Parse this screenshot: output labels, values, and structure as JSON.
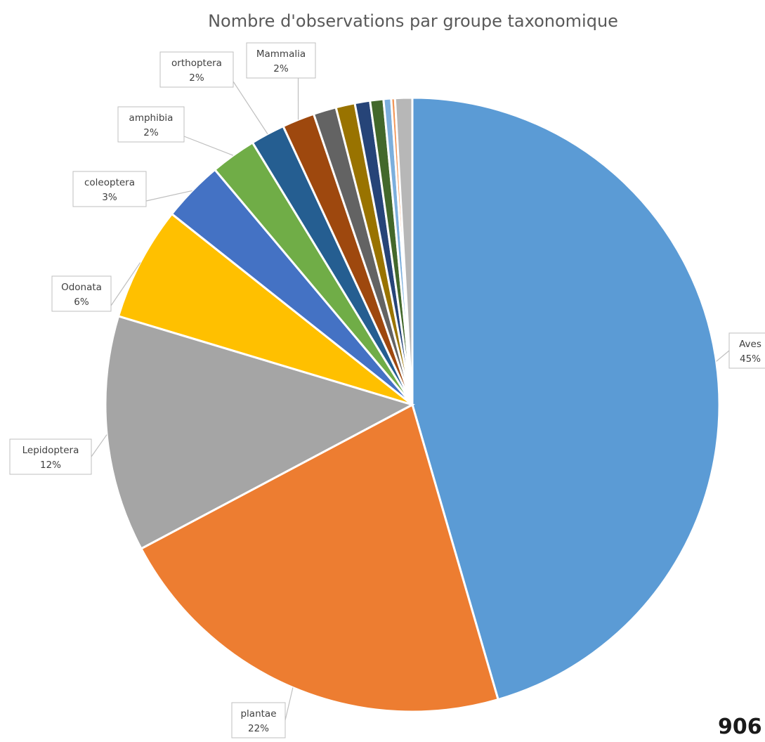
{
  "chart_data": {
    "type": "pie",
    "title": "Nombre d'observations par groupe taxonomique",
    "total_label": "906",
    "slices": [
      {
        "name": "Aves",
        "pct": 45.4,
        "label_pct": "45%",
        "color": "#5b9bd5",
        "labeled": true
      },
      {
        "name": "plantae",
        "pct": 21.7,
        "label_pct": "22%",
        "color": "#ed7d31",
        "labeled": true
      },
      {
        "name": "Lepidoptera",
        "pct": 12.4,
        "label_pct": "12%",
        "color": "#a5a5a5",
        "labeled": true
      },
      {
        "name": "Odonata",
        "pct": 6.0,
        "label_pct": "6%",
        "color": "#ffc000",
        "labeled": true
      },
      {
        "name": "coleoptera",
        "pct": 3.2,
        "label_pct": "3%",
        "color": "#4472c4",
        "labeled": true
      },
      {
        "name": "amphibia",
        "pct": 2.4,
        "label_pct": "2%",
        "color": "#70ad47",
        "labeled": true
      },
      {
        "name": "orthoptera",
        "pct": 1.8,
        "label_pct": "2%",
        "color": "#255e91",
        "labeled": true
      },
      {
        "name": "Mammalia",
        "pct": 1.7,
        "label_pct": "2%",
        "color": "#9e480e",
        "labeled": true
      },
      {
        "name": "",
        "pct": 1.2,
        "label_pct": "",
        "color": "#636363",
        "labeled": false
      },
      {
        "name": "",
        "pct": 1.0,
        "label_pct": "",
        "color": "#997300",
        "labeled": false
      },
      {
        "name": "",
        "pct": 0.8,
        "label_pct": "",
        "color": "#264478",
        "labeled": false
      },
      {
        "name": "",
        "pct": 0.7,
        "label_pct": "",
        "color": "#43682b",
        "labeled": false
      },
      {
        "name": "",
        "pct": 0.4,
        "label_pct": "",
        "color": "#7cafdd",
        "labeled": false
      },
      {
        "name": "",
        "pct": 0.2,
        "label_pct": "",
        "color": "#f1975a",
        "labeled": false
      },
      {
        "name": "",
        "pct": 0.9,
        "label_pct": "",
        "color": "#b7b7b7",
        "labeled": false
      }
    ]
  }
}
